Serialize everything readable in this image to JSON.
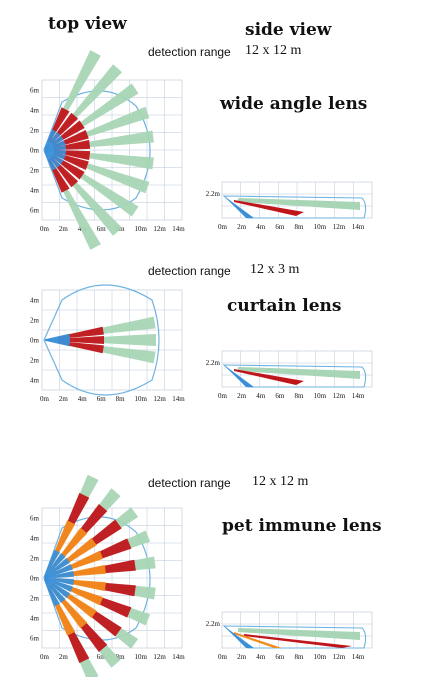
{
  "headers": {
    "top_view": "top view",
    "side_view": "side view"
  },
  "colors": {
    "grid": "#b8c6d8",
    "outline": "#6fb3e0",
    "green": "#a8d5b5",
    "red": "#c0161b",
    "blue": "#3a8fd8",
    "orange": "#f28c1e"
  },
  "top_view_x_ticks": [
    "0m",
    "2m",
    "4m",
    "6m",
    "8m",
    "10m",
    "12m",
    "14m"
  ],
  "side_view_x_ticks": [
    "0m",
    "2m",
    "4m",
    "6m",
    "8m",
    "10m",
    "12m",
    "14m"
  ],
  "side_view_height_label": "2.2m",
  "sections": [
    {
      "detection_label": "detection range",
      "detection_value": "12 x 12 m",
      "lens_name": "wide angle lens",
      "top_y_ticks": [
        "6m",
        "4m",
        "2m",
        "0m",
        "2m",
        "4m",
        "6m"
      ]
    },
    {
      "detection_label": "detection range",
      "detection_value": "12 x 3 m",
      "lens_name": "curtain lens",
      "top_y_ticks": [
        "4m",
        "2m",
        "0m",
        "2m",
        "4m"
      ]
    },
    {
      "detection_label": "detection range",
      "detection_value": "12 x 12 m",
      "lens_name": "pet immune lens",
      "top_y_ticks": [
        "6m",
        "4m",
        "2m",
        "0m",
        "2m",
        "4m",
        "6m"
      ]
    }
  ]
}
